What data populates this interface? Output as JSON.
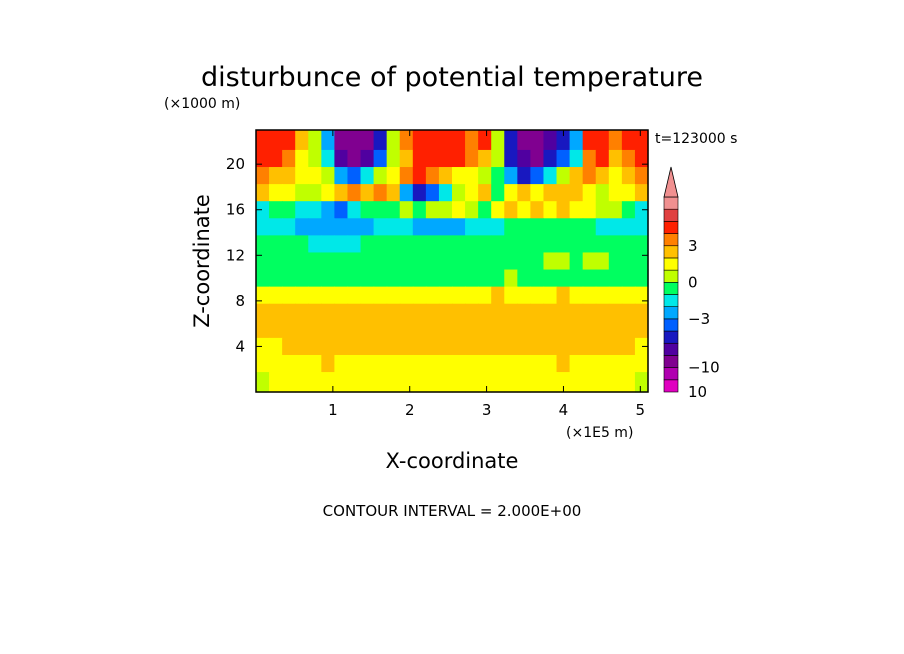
{
  "chart_data": {
    "type": "heatmap",
    "title": "disturbunce of potential temperature",
    "xlabel": "X-coordinate",
    "ylabel": "Z-coordinate",
    "x_unit": "(×1E5 m)",
    "y_unit": "(×1000 m)",
    "time_label": "t=123000 s",
    "footer": "CONTOUR INTERVAL = 2.000E+00",
    "xlim": [
      0,
      5.1
    ],
    "ylim": [
      0,
      23
    ],
    "x_ticks": [
      1,
      2,
      3,
      4,
      5
    ],
    "y_ticks": [
      4,
      8,
      12,
      16,
      20
    ],
    "x_tick_labels": [
      "1",
      "2",
      "3",
      "4",
      "5"
    ],
    "y_tick_labels": [
      "4",
      "8",
      "12",
      "16",
      "20"
    ],
    "grid": false,
    "colorbar": {
      "position": "right",
      "tick_labels": [
        {
          "value": 10,
          "label": "10"
        },
        {
          "value": 3,
          "label": "3"
        },
        {
          "value": 0,
          "label": "0"
        },
        {
          "value": -3,
          "label": "−3"
        },
        {
          "value": -10,
          "label": "−10"
        }
      ],
      "levels": [
        {
          "value": -15,
          "color": "#e000c0"
        },
        {
          "value": -12,
          "color": "#b000b0"
        },
        {
          "value": -10,
          "color": "#800090"
        },
        {
          "value": -8,
          "color": "#5000a0"
        },
        {
          "value": -6,
          "color": "#1818c0"
        },
        {
          "value": -4,
          "color": "#0060ff"
        },
        {
          "value": -3,
          "color": "#00a8ff"
        },
        {
          "value": -2,
          "color": "#00e8e8"
        },
        {
          "value": -1,
          "color": "#00ff60"
        },
        {
          "value": 0,
          "color": "#c0ff00"
        },
        {
          "value": 1,
          "color": "#ffff00"
        },
        {
          "value": 2,
          "color": "#ffc000"
        },
        {
          "value": 3,
          "color": "#ff8000"
        },
        {
          "value": 4,
          "color": "#ff2000"
        },
        {
          "value": 8,
          "color": "#e04040"
        },
        {
          "value": 12,
          "color": "#f09090"
        }
      ]
    },
    "field_rows": [
      {
        "z": 22.0,
        "v": [
          6,
          5,
          4,
          2,
          0,
          -3,
          -9,
          -10,
          -9,
          -5,
          0,
          3,
          7,
          7,
          6,
          4,
          3,
          5,
          0,
          -6,
          -9,
          -10,
          -7,
          -5,
          -3,
          4,
          6,
          3,
          5,
          7
        ]
      },
      {
        "z": 20.5,
        "v": [
          5,
          4,
          3,
          1,
          0,
          -2,
          -8,
          -9,
          -8,
          -4,
          0,
          2,
          6,
          7,
          6,
          4,
          3,
          2,
          0,
          -5,
          -8,
          -9,
          -6,
          -4,
          -2,
          3,
          5,
          2,
          3,
          4
        ]
      },
      {
        "z": 19.0,
        "v": [
          3,
          2,
          2,
          1,
          1,
          0,
          -3,
          -4,
          -2,
          0,
          1,
          3,
          4,
          3,
          2,
          1,
          1,
          0,
          -1,
          -3,
          -5,
          -4,
          -2,
          0,
          2,
          3,
          2,
          1,
          2,
          3
        ]
      },
      {
        "z": 17.5,
        "v": [
          2,
          1,
          1,
          0,
          0,
          1,
          2,
          3,
          2,
          3,
          2,
          -3,
          -5,
          -4,
          -2,
          0,
          1,
          2,
          -1,
          1,
          2,
          1,
          2,
          2,
          2,
          1,
          0,
          1,
          1,
          2
        ]
      },
      {
        "z": 16.0,
        "v": [
          -2,
          -1,
          -1,
          -2,
          -2,
          -3,
          -4,
          -2,
          -1,
          -1,
          -1,
          0,
          -1,
          0,
          0,
          1,
          0,
          -1,
          1,
          2,
          1,
          2,
          1,
          2,
          1,
          1,
          0,
          0,
          -1,
          -2
        ]
      },
      {
        "z": 14.5,
        "v": [
          -2,
          -2,
          -2,
          -3,
          -3,
          -3,
          -3,
          -3,
          -3,
          -2,
          -2,
          -2,
          -3,
          -3,
          -3,
          -3,
          -2,
          -2,
          -2,
          -1,
          -1,
          -1,
          -1,
          -1,
          -1,
          -1,
          -2,
          -2,
          -2,
          -2
        ]
      },
      {
        "z": 13.0,
        "v": [
          -1,
          -1,
          -1,
          -1,
          -2,
          -2,
          -2,
          -2,
          -1,
          -1,
          -1,
          -1,
          -1,
          -1,
          -1,
          -1,
          -1,
          -1,
          -1,
          -1,
          -1,
          -1,
          -1,
          -1,
          -1,
          -1,
          -1,
          -1,
          -1,
          -1
        ]
      },
      {
        "z": 11.5,
        "v": [
          -1,
          -1,
          -1,
          -1,
          -1,
          -1,
          -1,
          -1,
          -1,
          -1,
          -1,
          -1,
          -1,
          -1,
          -1,
          -1,
          -1,
          -1,
          -1,
          -1,
          -1,
          -1,
          0,
          0,
          -1,
          0,
          0,
          -1,
          -1,
          -1
        ]
      },
      {
        "z": 10.0,
        "v": [
          -1,
          -1,
          -1,
          -1,
          -1,
          -1,
          -1,
          -1,
          -1,
          -1,
          -1,
          -1,
          -1,
          -1,
          -1,
          -1,
          -1,
          -1,
          -1,
          0,
          -1,
          -1,
          -1,
          -1,
          -1,
          -1,
          -1,
          -1,
          -1,
          -1
        ]
      },
      {
        "z": 8.5,
        "v": [
          1,
          1,
          1,
          1,
          1,
          1,
          1,
          1,
          1,
          1,
          1,
          1,
          1,
          1,
          1,
          1,
          1,
          1,
          2,
          1,
          1,
          1,
          1,
          2,
          1,
          1,
          1,
          1,
          1,
          1
        ]
      },
      {
        "z": 7.0,
        "v": [
          2,
          2,
          2,
          2,
          2,
          2,
          2,
          2,
          2,
          2,
          2,
          2,
          2,
          2,
          2,
          2,
          2,
          2,
          2,
          2,
          2,
          2,
          2,
          2,
          2,
          2,
          2,
          2,
          2,
          2
        ]
      },
      {
        "z": 5.5,
        "v": [
          2,
          2,
          2,
          2,
          2,
          2,
          2,
          2,
          2,
          2,
          2,
          2,
          2,
          2,
          2,
          2,
          2,
          2,
          2,
          2,
          2,
          2,
          2,
          2,
          2,
          2,
          2,
          2,
          2,
          2
        ]
      },
      {
        "z": 4.0,
        "v": [
          1,
          1,
          2,
          2,
          2,
          2,
          2,
          2,
          2,
          2,
          2,
          2,
          2,
          2,
          2,
          2,
          2,
          2,
          2,
          2,
          2,
          2,
          2,
          2,
          2,
          2,
          2,
          2,
          2,
          1
        ]
      },
      {
        "z": 2.5,
        "v": [
          1,
          1,
          1,
          1,
          1,
          2,
          1,
          1,
          1,
          1,
          1,
          1,
          1,
          1,
          1,
          1,
          1,
          1,
          1,
          1,
          1,
          1,
          1,
          2,
          1,
          1,
          1,
          1,
          1,
          1
        ]
      },
      {
        "z": 1.0,
        "v": [
          0,
          1,
          1,
          1,
          1,
          1,
          1,
          1,
          1,
          1,
          1,
          1,
          1,
          1,
          1,
          1,
          1,
          1,
          1,
          1,
          1,
          1,
          1,
          1,
          1,
          1,
          1,
          1,
          1,
          0
        ]
      }
    ],
    "field_x": [
      0.085,
      0.255,
      0.425,
      0.595,
      0.765,
      0.935,
      1.105,
      1.275,
      1.445,
      1.615,
      1.785,
      1.955,
      2.125,
      2.295,
      2.465,
      2.635,
      2.805,
      2.975,
      3.145,
      3.315,
      3.485,
      3.655,
      3.825,
      3.995,
      4.165,
      4.335,
      4.505,
      4.675,
      4.845,
      5.015
    ]
  }
}
